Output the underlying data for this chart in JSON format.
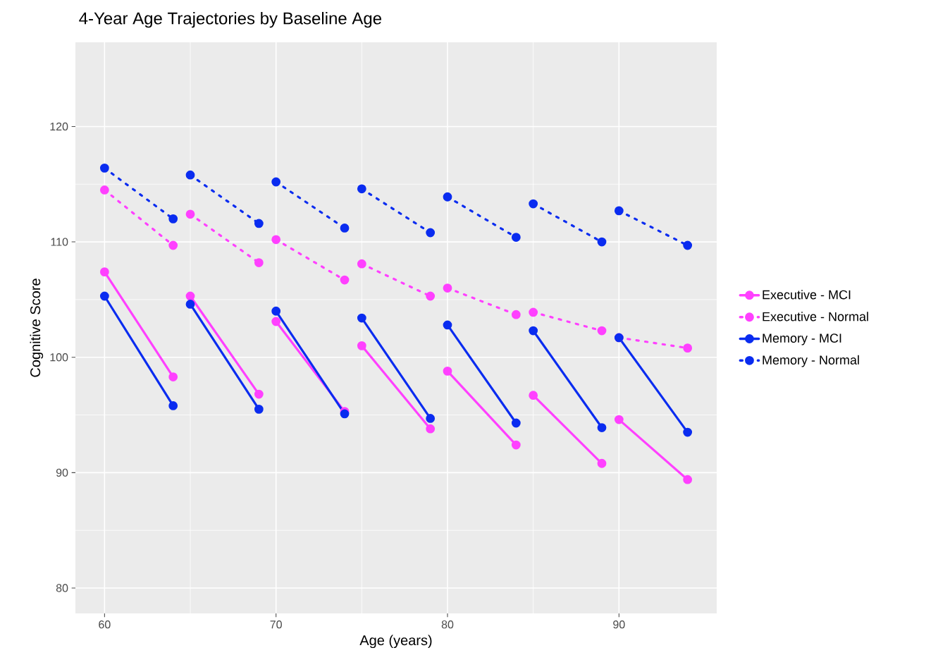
{
  "chart_data": {
    "type": "line",
    "title": "4-Year Age Trajectories by Baseline Age",
    "xlabel": "Age (years)",
    "ylabel": "Cognitive Score",
    "xlim": [
      58.3,
      95.7
    ],
    "ylim": [
      77.8,
      127.3
    ],
    "xticks": [
      60,
      70,
      80,
      90
    ],
    "yticks": [
      80,
      90,
      100,
      110,
      120
    ],
    "grid": true,
    "legend": "right",
    "marker": "circle",
    "series": [
      {
        "name": "Executive - MCI",
        "color": "#ff40ff",
        "line_style": "solid",
        "x": [
          60,
          64,
          64.5,
          65,
          69,
          69.5,
          70,
          74,
          74.5,
          75,
          79,
          79.5,
          80,
          84,
          84.5,
          85,
          89,
          89.5,
          90,
          94
        ],
        "values": [
          107.4,
          98.3,
          null,
          105.3,
          96.8,
          null,
          103.1,
          95.3,
          null,
          101.0,
          93.8,
          null,
          98.8,
          92.4,
          null,
          96.7,
          90.8,
          null,
          94.6,
          89.4
        ]
      },
      {
        "name": "Executive - Normal",
        "color": "#ff40ff",
        "line_style": "dotted",
        "x": [
          60,
          64,
          64.5,
          65,
          69,
          69.5,
          70,
          74,
          74.5,
          75,
          79,
          79.5,
          80,
          84,
          84.5,
          85,
          89,
          89.5,
          90,
          94
        ],
        "values": [
          114.5,
          109.7,
          null,
          112.4,
          108.2,
          null,
          110.2,
          106.7,
          null,
          108.1,
          105.3,
          null,
          106.0,
          103.7,
          null,
          103.9,
          102.3,
          null,
          101.7,
          100.8
        ]
      },
      {
        "name": "Memory - MCI",
        "color": "#0a2cf0",
        "line_style": "solid",
        "x": [
          60,
          64,
          64.5,
          65,
          69,
          69.5,
          70,
          74,
          74.5,
          75,
          79,
          79.5,
          80,
          84,
          84.5,
          85,
          89,
          89.5,
          90,
          94
        ],
        "values": [
          105.3,
          95.8,
          null,
          104.6,
          95.5,
          null,
          104.0,
          95.1,
          null,
          103.4,
          94.7,
          null,
          102.8,
          94.3,
          null,
          102.3,
          93.9,
          null,
          101.7,
          93.5
        ]
      },
      {
        "name": "Memory - Normal",
        "color": "#0a2cf0",
        "line_style": "dotted",
        "x": [
          60,
          64,
          64.5,
          65,
          69,
          69.5,
          70,
          74,
          74.5,
          75,
          79,
          79.5,
          80,
          84,
          84.5,
          85,
          89,
          89.5,
          90,
          94
        ],
        "values": [
          116.4,
          112.0,
          null,
          115.8,
          111.6,
          null,
          115.2,
          111.2,
          null,
          114.6,
          110.8,
          null,
          113.9,
          110.4,
          null,
          113.3,
          110.0,
          null,
          112.7,
          109.7
        ]
      }
    ]
  }
}
